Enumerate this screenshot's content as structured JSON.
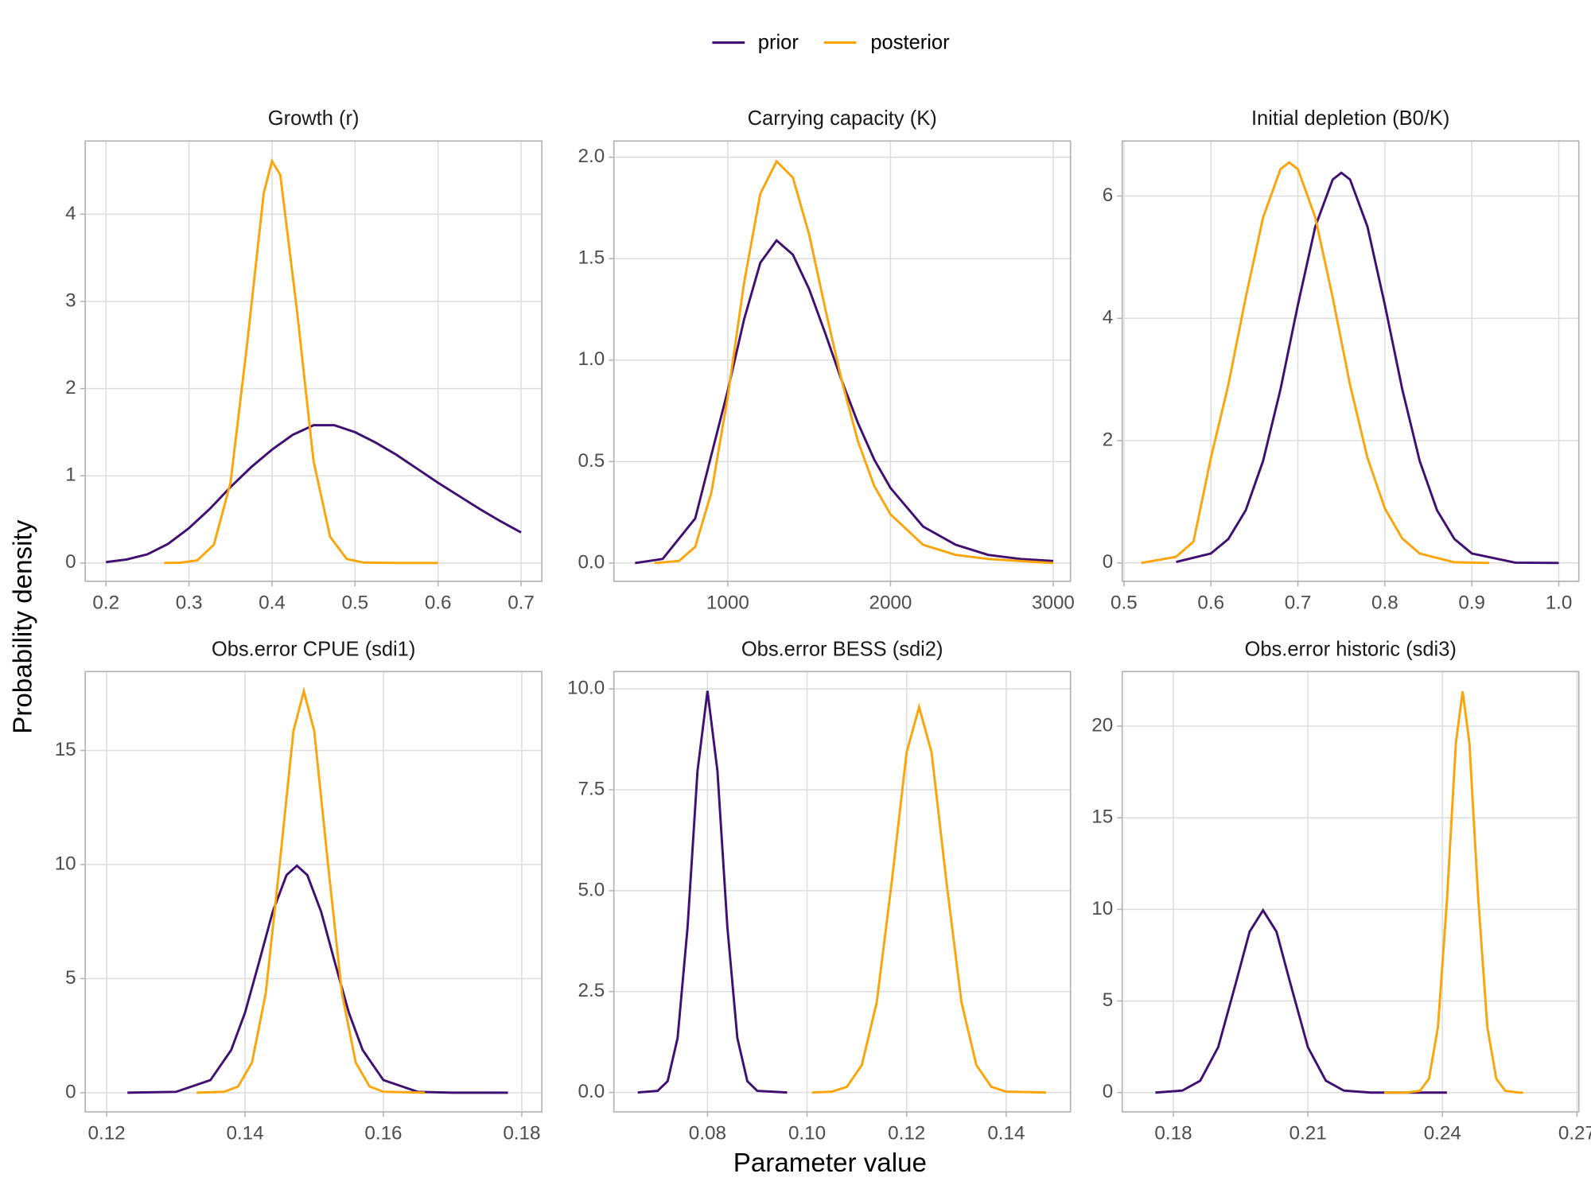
{
  "y_label": "Probability density",
  "x_label": "Parameter value",
  "chart_data": [
    {
      "type": "line",
      "title": "Growth (r)",
      "xlim": [
        0.175,
        0.725
      ],
      "ylim": [
        -0.21,
        4.84
      ],
      "xticks": [
        0.2,
        0.3,
        0.4,
        0.5,
        0.6,
        0.7
      ],
      "yticks": [
        0,
        1,
        2,
        3,
        4
      ],
      "grid": true,
      "series": [
        {
          "name": "prior",
          "color": "#3f0f72",
          "x": [
            0.2,
            0.225,
            0.25,
            0.275,
            0.3,
            0.325,
            0.35,
            0.375,
            0.4,
            0.425,
            0.45,
            0.475,
            0.5,
            0.525,
            0.55,
            0.575,
            0.6,
            0.625,
            0.65,
            0.675,
            0.7
          ],
          "values": [
            0.01,
            0.04,
            0.1,
            0.22,
            0.4,
            0.62,
            0.87,
            1.1,
            1.3,
            1.47,
            1.58,
            1.58,
            1.5,
            1.38,
            1.24,
            1.08,
            0.92,
            0.77,
            0.62,
            0.48,
            0.35
          ]
        },
        {
          "name": "posterior",
          "color": "#fca50a",
          "x": [
            0.27,
            0.29,
            0.31,
            0.33,
            0.35,
            0.37,
            0.39,
            0.4,
            0.41,
            0.43,
            0.45,
            0.47,
            0.49,
            0.51,
            0.55,
            0.6
          ],
          "values": [
            0.0,
            0.003,
            0.03,
            0.21,
            0.92,
            2.51,
            4.24,
            4.61,
            4.45,
            2.9,
            1.17,
            0.3,
            0.046,
            0.005,
            0.0,
            0.0
          ]
        }
      ]
    },
    {
      "type": "line",
      "title": "Carrying capacity (K)",
      "xlim": [
        300,
        3106
      ],
      "ylim": [
        -0.09,
        2.08
      ],
      "xticks": [
        1000,
        2000,
        3000
      ],
      "yticks": [
        {
          "value": 0,
          "label": "0.0"
        },
        0.5,
        {
          "value": 1,
          "label": "1.0"
        },
        1.5,
        {
          "value": 2,
          "label": "2.0"
        }
      ],
      "grid": true,
      "series": [
        {
          "name": "prior",
          "color": "#3f0f72",
          "x": [
            430,
            600,
            800,
            1000,
            1100,
            1200,
            1300,
            1400,
            1500,
            1600,
            1700,
            1800,
            1900,
            2000,
            2200,
            2400,
            2600,
            2800,
            3000
          ],
          "values": [
            0.0,
            0.02,
            0.22,
            0.85,
            1.2,
            1.48,
            1.59,
            1.52,
            1.35,
            1.13,
            0.9,
            0.69,
            0.51,
            0.37,
            0.18,
            0.09,
            0.04,
            0.02,
            0.01
          ]
        },
        {
          "name": "posterior",
          "color": "#fca50a",
          "x": [
            550,
            700,
            800,
            900,
            1000,
            1100,
            1200,
            1300,
            1400,
            1500,
            1600,
            1700,
            1800,
            1900,
            2000,
            2200,
            2400,
            2600,
            2800,
            3000
          ],
          "values": [
            0.0,
            0.01,
            0.08,
            0.35,
            0.82,
            1.38,
            1.82,
            1.98,
            1.9,
            1.62,
            1.25,
            0.9,
            0.6,
            0.38,
            0.24,
            0.09,
            0.04,
            0.02,
            0.01,
            0.0
          ]
        }
      ]
    },
    {
      "type": "line",
      "title": "Initial depletion (B0/K)",
      "xlim": [
        0.498,
        1.023
      ],
      "ylim": [
        -0.3,
        6.9
      ],
      "xticks": [
        0.5,
        0.6,
        0.7,
        0.8,
        0.9,
        {
          "value": 1,
          "label": "1.0"
        }
      ],
      "yticks": [
        0,
        2,
        4,
        6
      ],
      "grid": true,
      "series": [
        {
          "name": "prior",
          "color": "#3f0f72",
          "x": [
            0.56,
            0.6,
            0.62,
            0.64,
            0.66,
            0.68,
            0.7,
            0.72,
            0.74,
            0.75,
            0.76,
            0.78,
            0.8,
            0.82,
            0.84,
            0.86,
            0.88,
            0.9,
            0.95,
            1.0
          ],
          "values": [
            0.016,
            0.155,
            0.39,
            0.86,
            1.67,
            2.84,
            4.22,
            5.5,
            6.27,
            6.38,
            6.27,
            5.5,
            4.22,
            2.84,
            1.67,
            0.86,
            0.39,
            0.155,
            0.005,
            0.0
          ]
        },
        {
          "name": "posterior",
          "color": "#fca50a",
          "x": [
            0.52,
            0.56,
            0.58,
            0.6,
            0.62,
            0.64,
            0.66,
            0.68,
            0.69,
            0.7,
            0.72,
            0.74,
            0.76,
            0.78,
            0.8,
            0.82,
            0.84,
            0.88,
            0.92
          ],
          "values": [
            0.0,
            0.1,
            0.35,
            1.72,
            2.91,
            4.34,
            5.65,
            6.44,
            6.55,
            6.44,
            5.65,
            4.34,
            2.91,
            1.72,
            0.89,
            0.4,
            0.155,
            0.01,
            0.0
          ]
        }
      ]
    },
    {
      "type": "line",
      "title": "Obs.error CPUE (sdi1)",
      "xlim": [
        0.1169,
        0.1829
      ],
      "ylim": [
        -0.84,
        18.46
      ],
      "xticks": [
        0.12,
        0.14,
        0.16,
        0.18
      ],
      "yticks": [
        0,
        5,
        10,
        15
      ],
      "grid": true,
      "series": [
        {
          "name": "prior",
          "color": "#3f0f72",
          "x": [
            0.123,
            0.13,
            0.135,
            0.138,
            0.14,
            0.142,
            0.144,
            0.146,
            0.1475,
            0.149,
            0.151,
            0.153,
            0.155,
            0.157,
            0.16,
            0.165,
            0.17,
            0.178
          ],
          "values": [
            0.0,
            0.035,
            0.55,
            1.87,
            3.51,
            5.69,
            7.93,
            9.54,
            9.95,
            9.54,
            7.93,
            5.69,
            3.51,
            1.87,
            0.55,
            0.035,
            0.0,
            0.0
          ]
        },
        {
          "name": "posterior",
          "color": "#fca50a",
          "x": [
            0.133,
            0.137,
            0.139,
            0.141,
            0.143,
            0.145,
            0.147,
            0.1485,
            0.15,
            0.152,
            0.154,
            0.156,
            0.158,
            0.16,
            0.166
          ],
          "values": [
            0.0,
            0.04,
            0.27,
            1.32,
            4.37,
            10.0,
            15.86,
            17.6,
            15.86,
            10.0,
            4.37,
            1.32,
            0.27,
            0.04,
            0.0
          ]
        }
      ]
    },
    {
      "type": "line",
      "title": "Obs.error BESS (sdi2)",
      "xlim": [
        0.0612,
        0.1529
      ],
      "ylim": [
        -0.48,
        10.43
      ],
      "xticks": [
        0.08,
        {
          "value": 0.1,
          "label": "0.10"
        },
        0.12,
        0.14
      ],
      "yticks": [
        {
          "value": 0,
          "label": "0.0"
        },
        2.5,
        {
          "value": 5,
          "label": "5.0"
        },
        7.5,
        {
          "value": 10,
          "label": "10.0"
        }
      ],
      "grid": true,
      "series": [
        {
          "name": "prior",
          "color": "#3f0f72",
          "x": [
            0.066,
            0.07,
            0.072,
            0.074,
            0.076,
            0.078,
            0.08,
            0.082,
            0.084,
            0.086,
            0.088,
            0.09,
            0.096
          ],
          "values": [
            0.0,
            0.04,
            0.28,
            1.35,
            4.09,
            7.97,
            9.95,
            7.97,
            4.09,
            1.35,
            0.28,
            0.04,
            0.0
          ]
        },
        {
          "name": "posterior",
          "color": "#fca50a",
          "x": [
            0.101,
            0.105,
            0.108,
            0.111,
            0.114,
            0.117,
            0.12,
            0.1225,
            0.125,
            0.128,
            0.131,
            0.134,
            0.137,
            0.14,
            0.148
          ],
          "values": [
            0.0,
            0.02,
            0.14,
            0.68,
            2.24,
            5.21,
            8.43,
            9.55,
            8.43,
            5.21,
            2.24,
            0.68,
            0.14,
            0.02,
            0.0
          ]
        }
      ]
    },
    {
      "type": "line",
      "title": "Obs.error historic (sdi3)",
      "xlim": [
        0.1686,
        0.2704
      ],
      "ylim": [
        -1.05,
        22.98
      ],
      "xticks": [
        0.18,
        0.21,
        0.24,
        0.27
      ],
      "yticks": [
        0,
        5,
        10,
        15,
        20
      ],
      "grid": true,
      "series": [
        {
          "name": "prior",
          "color": "#3f0f72",
          "x": [
            0.176,
            0.182,
            0.186,
            0.19,
            0.194,
            0.197,
            0.2,
            0.203,
            0.206,
            0.21,
            0.214,
            0.218,
            0.224,
            0.241
          ],
          "values": [
            0.0,
            0.11,
            0.65,
            2.48,
            6.04,
            8.78,
            9.95,
            8.78,
            6.04,
            2.48,
            0.65,
            0.11,
            0.0,
            0.0
          ]
        },
        {
          "name": "posterior",
          "color": "#fca50a",
          "x": [
            0.227,
            0.232,
            0.235,
            0.237,
            0.239,
            0.241,
            0.243,
            0.2445,
            0.246,
            0.248,
            0.25,
            0.252,
            0.254,
            0.257,
            0.258
          ],
          "values": [
            0.0,
            0.0,
            0.1,
            0.76,
            3.59,
            10.5,
            19.1,
            21.9,
            19.1,
            10.5,
            3.59,
            0.76,
            0.1,
            0.0,
            0.0
          ]
        }
      ]
    }
  ]
}
